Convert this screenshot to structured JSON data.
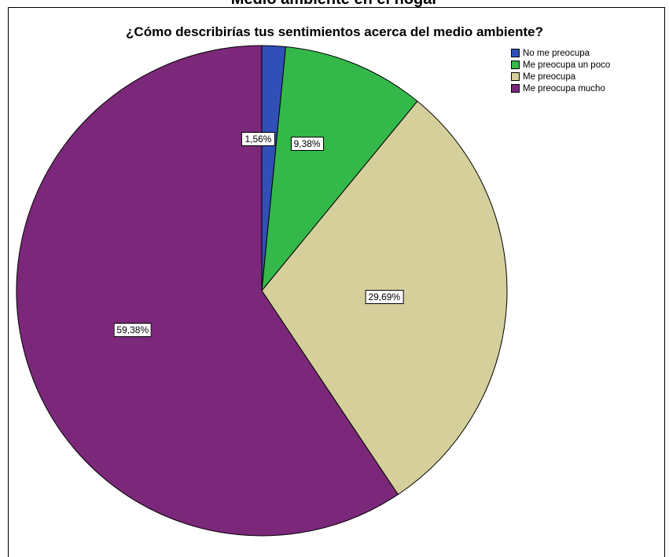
{
  "top_text": "Medio ambiente en el hogar",
  "chart_data": {
    "type": "pie",
    "title": "¿Cómo describirías tus sentimientos acerca del medio ambiente?",
    "categories": [
      "No me preocupa",
      "Me preocupa un poco",
      "Me preocupa",
      "Me preocupa mucho"
    ],
    "values": [
      1.56,
      9.38,
      29.69,
      59.38
    ],
    "labels": [
      "1,56%",
      "9,38%",
      "29,69%",
      "59,38%"
    ],
    "colors": [
      "#3050b8",
      "#34b84a",
      "#d5cf9c",
      "#7b287a"
    ],
    "legend": "top-right",
    "start": "top",
    "direction": "clockwise"
  }
}
